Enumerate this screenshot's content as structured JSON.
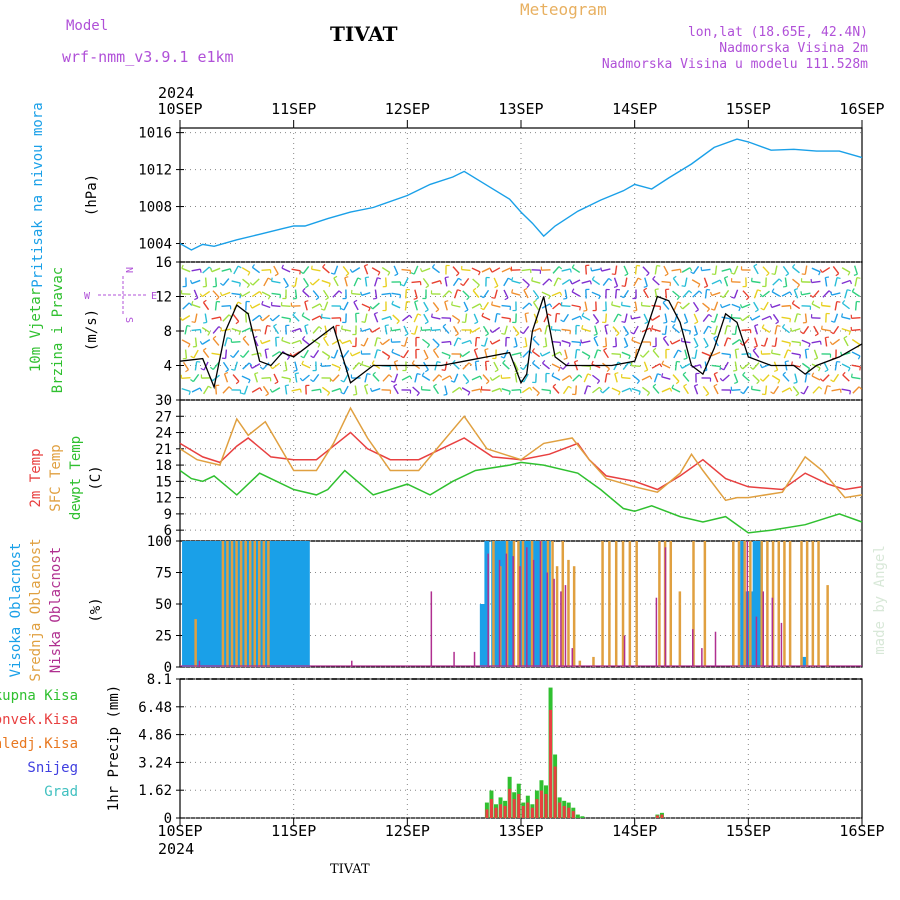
{
  "header": {
    "model_label": "Model",
    "model_name": "wrf-nmm_v3.9.1 e1km",
    "station": "TIVAT",
    "meteogram_title": "Meteogram",
    "lonlat": "lon,lat (18.65E, 42.4N)",
    "altitude": "Nadmorska Visina 2m",
    "model_altitude": "Nadmorska Visina u modelu 111.528m"
  },
  "footer": {
    "station": "TIVAT",
    "watermark": "made by Angel"
  },
  "time_axis": {
    "year": "2024",
    "ticks": [
      "10SEP",
      "11SEP",
      "12SEP",
      "13SEP",
      "14SEP",
      "15SEP",
      "16SEP"
    ],
    "range_days": [
      0,
      6
    ]
  },
  "colors": {
    "pressure": "#1aa0e8",
    "t2m": "#e84040",
    "tsfc": "#e0a040",
    "dewpoint": "#30c030",
    "high_cloud": "#1aa0e8",
    "mid_cloud": "#e0a040",
    "low_cloud": "#b03090",
    "total_precip": "#30c030",
    "convective": "#e84040",
    "freezing": "#e87820",
    "snow": "#4040e0",
    "hail": "#40c0c0",
    "label_purple": "#b050d8"
  },
  "chart_data": [
    {
      "type": "line",
      "panel": "pressure",
      "ylabel_left": "Pritisak na nivou mora",
      "ylabel_unit": "(hPa)",
      "ylim": [
        1002,
        1016.5
      ],
      "yticks": [
        "1004",
        "1008",
        "1012",
        "1016"
      ],
      "grid": true,
      "series": [
        {
          "name": "Pritisak na nivou mora",
          "x": [
            0,
            0.1,
            0.2,
            0.3,
            0.5,
            0.7,
            0.9,
            1.0,
            1.1,
            1.3,
            1.5,
            1.7,
            2.0,
            2.2,
            2.4,
            2.5,
            2.7,
            2.9,
            3.0,
            3.1,
            3.2,
            3.3,
            3.5,
            3.7,
            3.9,
            4.0,
            4.15,
            4.3,
            4.5,
            4.7,
            4.9,
            5.0,
            5.2,
            5.4,
            5.6,
            5.8,
            6.0
          ],
          "values": [
            1004.0,
            1003.3,
            1003.9,
            1003.7,
            1004.4,
            1005.0,
            1005.6,
            1005.9,
            1005.9,
            1006.7,
            1007.4,
            1007.9,
            1009.2,
            1010.4,
            1011.2,
            1011.8,
            1010.3,
            1008.8,
            1007.4,
            1006.2,
            1004.8,
            1005.9,
            1007.5,
            1008.7,
            1009.7,
            1010.4,
            1009.9,
            1011.1,
            1012.6,
            1014.4,
            1015.3,
            1015.0,
            1014.1,
            1014.2,
            1014.0,
            1014.0,
            1013.3
          ]
        }
      ]
    },
    {
      "type": "line",
      "panel": "wind",
      "ylabel_left": "10m Vjetar Brzina i Pravac",
      "ylabel_unit": "(m/s)",
      "compass": {
        "w": "W",
        "e": "E",
        "n": "N",
        "s": "S"
      },
      "ylim": [
        0,
        16
      ],
      "yticks": [
        "4",
        "8",
        "12",
        "16"
      ],
      "grid": true,
      "series": [
        {
          "name": "Brzina",
          "x": [
            0,
            0.2,
            0.3,
            0.4,
            0.5,
            0.6,
            0.7,
            0.8,
            0.9,
            1.0,
            1.1,
            1.2,
            1.35,
            1.5,
            1.7,
            2.0,
            2.3,
            2.5,
            2.7,
            2.9,
            3.0,
            3.05,
            3.1,
            3.2,
            3.3,
            3.4,
            3.6,
            3.8,
            4.0,
            4.1,
            4.2,
            4.3,
            4.4,
            4.5,
            4.6,
            4.7,
            4.8,
            4.9,
            5.0,
            5.2,
            5.4,
            5.5,
            5.6,
            5.8,
            6.0
          ],
          "values": [
            4.5,
            4.8,
            1.5,
            8,
            11,
            10,
            4.5,
            4,
            5.5,
            5,
            6,
            7,
            8.5,
            2,
            4,
            4,
            4,
            4.5,
            5,
            5.5,
            2,
            3,
            8,
            12,
            5,
            4,
            4,
            4,
            4.5,
            8,
            12,
            11.5,
            9,
            4,
            3,
            6,
            10,
            9,
            5,
            4,
            4,
            3,
            4,
            5,
            6.5
          ]
        }
      ]
    },
    {
      "type": "line",
      "panel": "temperature",
      "ylabels": [
        "2m Temp",
        "SFC Temp",
        "dewpt Temp"
      ],
      "ylabel_unit": "(C)",
      "ylim": [
        4,
        30
      ],
      "yticks": [
        "6",
        "9",
        "12",
        "15",
        "18",
        "21",
        "24",
        "27",
        "30"
      ],
      "grid": true,
      "series": [
        {
          "name": "2m Temp",
          "x": [
            0,
            0.2,
            0.35,
            0.5,
            0.6,
            0.8,
            1.0,
            1.2,
            1.35,
            1.5,
            1.65,
            1.85,
            2.1,
            2.3,
            2.5,
            2.75,
            3.0,
            3.25,
            3.5,
            3.6,
            3.75,
            4.0,
            4.2,
            4.4,
            4.6,
            4.8,
            5.0,
            5.3,
            5.5,
            5.7,
            5.85,
            6.0
          ],
          "values": [
            22,
            19.5,
            18.5,
            21.5,
            23,
            19.5,
            19,
            19,
            21.5,
            24,
            21,
            19,
            19,
            21,
            23,
            19.5,
            19,
            20,
            22,
            19,
            16,
            15,
            13.5,
            16,
            19,
            15.5,
            14,
            13.5,
            16.5,
            14.5,
            13.5,
            14
          ]
        },
        {
          "name": "SFC Temp",
          "x": [
            0,
            0.15,
            0.35,
            0.5,
            0.6,
            0.75,
            1.0,
            1.2,
            1.35,
            1.5,
            1.65,
            1.85,
            2.1,
            2.3,
            2.5,
            2.7,
            3.0,
            3.2,
            3.45,
            3.6,
            3.75,
            4.0,
            4.2,
            4.4,
            4.5,
            4.6,
            4.8,
            4.9,
            5.0,
            5.3,
            5.5,
            5.65,
            5.85,
            6.0
          ],
          "values": [
            21,
            19,
            18,
            26.5,
            23.5,
            26,
            17,
            17,
            22,
            28.5,
            23,
            17,
            17,
            22,
            27,
            21,
            19,
            22,
            23,
            19,
            15.5,
            14,
            13,
            16.5,
            20,
            17,
            11.5,
            12,
            12,
            13,
            19.5,
            17,
            12,
            12.5
          ]
        },
        {
          "name": "dewpt Temp",
          "x": [
            0,
            0.1,
            0.2,
            0.3,
            0.5,
            0.7,
            1.0,
            1.2,
            1.3,
            1.45,
            1.7,
            2.0,
            2.2,
            2.4,
            2.6,
            2.9,
            3.0,
            3.2,
            3.5,
            3.7,
            3.9,
            4.0,
            4.15,
            4.4,
            4.6,
            4.8,
            5.0,
            5.2,
            5.5,
            5.8,
            6.0
          ],
          "values": [
            17,
            15.5,
            15,
            16,
            12.5,
            16.5,
            13.5,
            12.5,
            13.5,
            17,
            12.5,
            14.5,
            12.5,
            15,
            17,
            18,
            18.5,
            18,
            16.5,
            13.5,
            10,
            9.5,
            10.5,
            8.5,
            7.5,
            8.5,
            5.5,
            6,
            7,
            9,
            7.5
          ]
        }
      ]
    },
    {
      "type": "bar",
      "panel": "cloud",
      "ylabels": [
        "Visoka Oblacnost",
        "Srednja Oblacnost",
        "Niska Oblacnost"
      ],
      "ylabel_unit": "(%)",
      "ylim": [
        0,
        100
      ],
      "yticks": [
        "0",
        "25",
        "50",
        "75",
        "100"
      ],
      "grid": true,
      "series": [
        {
          "name": "Visoka Oblacnost",
          "x": [
            0.04,
            0.08,
            0.12,
            0.16,
            0.2,
            0.24,
            0.28,
            0.32,
            0.36,
            0.4,
            0.44,
            0.48,
            0.52,
            0.56,
            0.6,
            0.64,
            0.68,
            0.72,
            0.76,
            0.8,
            0.84,
            0.88,
            0.92,
            0.96,
            1.0,
            1.04,
            1.08,
            1.12,
            2.66,
            2.7,
            2.76,
            2.8,
            2.84,
            2.88,
            2.92,
            3.0,
            3.04,
            3.08,
            3.12,
            3.16,
            3.2,
            3.24,
            4.95,
            4.98,
            5.02,
            5.06,
            5.1,
            5.5
          ],
          "values": [
            100,
            100,
            100,
            100,
            100,
            100,
            100,
            100,
            100,
            100,
            100,
            100,
            100,
            100,
            100,
            100,
            100,
            100,
            100,
            100,
            100,
            100,
            100,
            100,
            100,
            100,
            100,
            100,
            50,
            100,
            100,
            100,
            100,
            100,
            100,
            100,
            100,
            100,
            100,
            100,
            100,
            100,
            100,
            60,
            60,
            100,
            100,
            8
          ]
        },
        {
          "name": "Srednja Oblacnost",
          "x": [
            0.12,
            0.36,
            0.4,
            0.44,
            0.48,
            0.52,
            0.56,
            0.6,
            0.64,
            0.68,
            0.72,
            0.76,
            2.74,
            2.8,
            2.86,
            2.92,
            2.96,
            3.0,
            3.08,
            3.16,
            3.22,
            3.26,
            3.3,
            3.35,
            3.4,
            3.45,
            3.5,
            3.62,
            3.7,
            3.76,
            3.82,
            3.88,
            3.94,
            4.0,
            4.2,
            4.25,
            4.3,
            4.38,
            4.5,
            4.6,
            4.85,
            4.9,
            4.95,
            5.0,
            5.1,
            5.15,
            5.2,
            5.25,
            5.3,
            5.35,
            5.45,
            5.5,
            5.55,
            5.6,
            5.68
          ],
          "values": [
            38,
            100,
            100,
            100,
            100,
            100,
            100,
            100,
            100,
            100,
            100,
            100,
            100,
            80,
            100,
            100,
            100,
            100,
            100,
            100,
            100,
            100,
            80,
            100,
            85,
            80,
            5,
            8,
            100,
            100,
            100,
            100,
            100,
            100,
            100,
            100,
            100,
            60,
            100,
            100,
            100,
            100,
            100,
            100,
            100,
            100,
            100,
            100,
            100,
            100,
            100,
            100,
            100,
            100,
            65
          ]
        },
        {
          "name": "Niska Oblacnost",
          "x": [
            0.18,
            1.52,
            2.22,
            2.42,
            2.6,
            2.72,
            2.82,
            2.88,
            2.94,
            3.0,
            3.06,
            3.12,
            3.18,
            3.24,
            3.3,
            3.36,
            3.4,
            3.46,
            3.92,
            4.2,
            4.28,
            4.52,
            4.6,
            4.72,
            5.0,
            5.08,
            5.14,
            5.22,
            5.3
          ],
          "values": [
            5,
            5,
            60,
            12,
            12,
            90,
            85,
            90,
            88,
            80,
            95,
            85,
            100,
            75,
            70,
            60,
            65,
            15,
            25,
            55,
            95,
            30,
            15,
            28,
            100,
            40,
            60,
            55,
            35
          ]
        }
      ]
    },
    {
      "type": "bar",
      "panel": "precip",
      "ylabels": [
        "Ukupna Kisa",
        "Konvek.Kisa",
        "Zaledj.Kisa",
        "Snijeg",
        "Grad"
      ],
      "ylabel_unit": "1hr Precip (mm)",
      "ylim": [
        0,
        8.1
      ],
      "yticks": [
        "0",
        "1.62",
        "3.24",
        "4.86",
        "6.48",
        "8.1"
      ],
      "grid": true,
      "series": [
        {
          "name": "Ukupna Kisa",
          "x": [
            2.7,
            2.74,
            2.78,
            2.82,
            2.86,
            2.9,
            2.94,
            2.98,
            3.02,
            3.06,
            3.1,
            3.14,
            3.18,
            3.22,
            3.26,
            3.3,
            3.34,
            3.38,
            3.42,
            3.46,
            3.5,
            3.54,
            4.2,
            4.24
          ],
          "values": [
            0.9,
            1.6,
            0.8,
            1.2,
            1.0,
            2.4,
            1.5,
            2.0,
            0.9,
            1.3,
            0.8,
            1.6,
            2.2,
            1.9,
            7.6,
            3.7,
            1.2,
            1.0,
            0.9,
            0.6,
            0.2,
            0.1,
            0.2,
            0.3
          ]
        },
        {
          "name": "Konvek.Kisa",
          "x": [
            2.7,
            2.74,
            2.78,
            2.82,
            2.86,
            2.9,
            2.94,
            2.98,
            3.02,
            3.06,
            3.1,
            3.14,
            3.18,
            3.22,
            3.26,
            3.3,
            3.34,
            3.38,
            3.42,
            3.46,
            4.2,
            4.24
          ],
          "values": [
            0.5,
            1.1,
            0.6,
            0.8,
            0.7,
            1.7,
            1.1,
            1.4,
            0.7,
            0.9,
            0.6,
            1.1,
            1.6,
            1.4,
            6.3,
            3.0,
            0.9,
            0.7,
            0.6,
            0.4,
            0.15,
            0.2
          ]
        }
      ]
    }
  ]
}
